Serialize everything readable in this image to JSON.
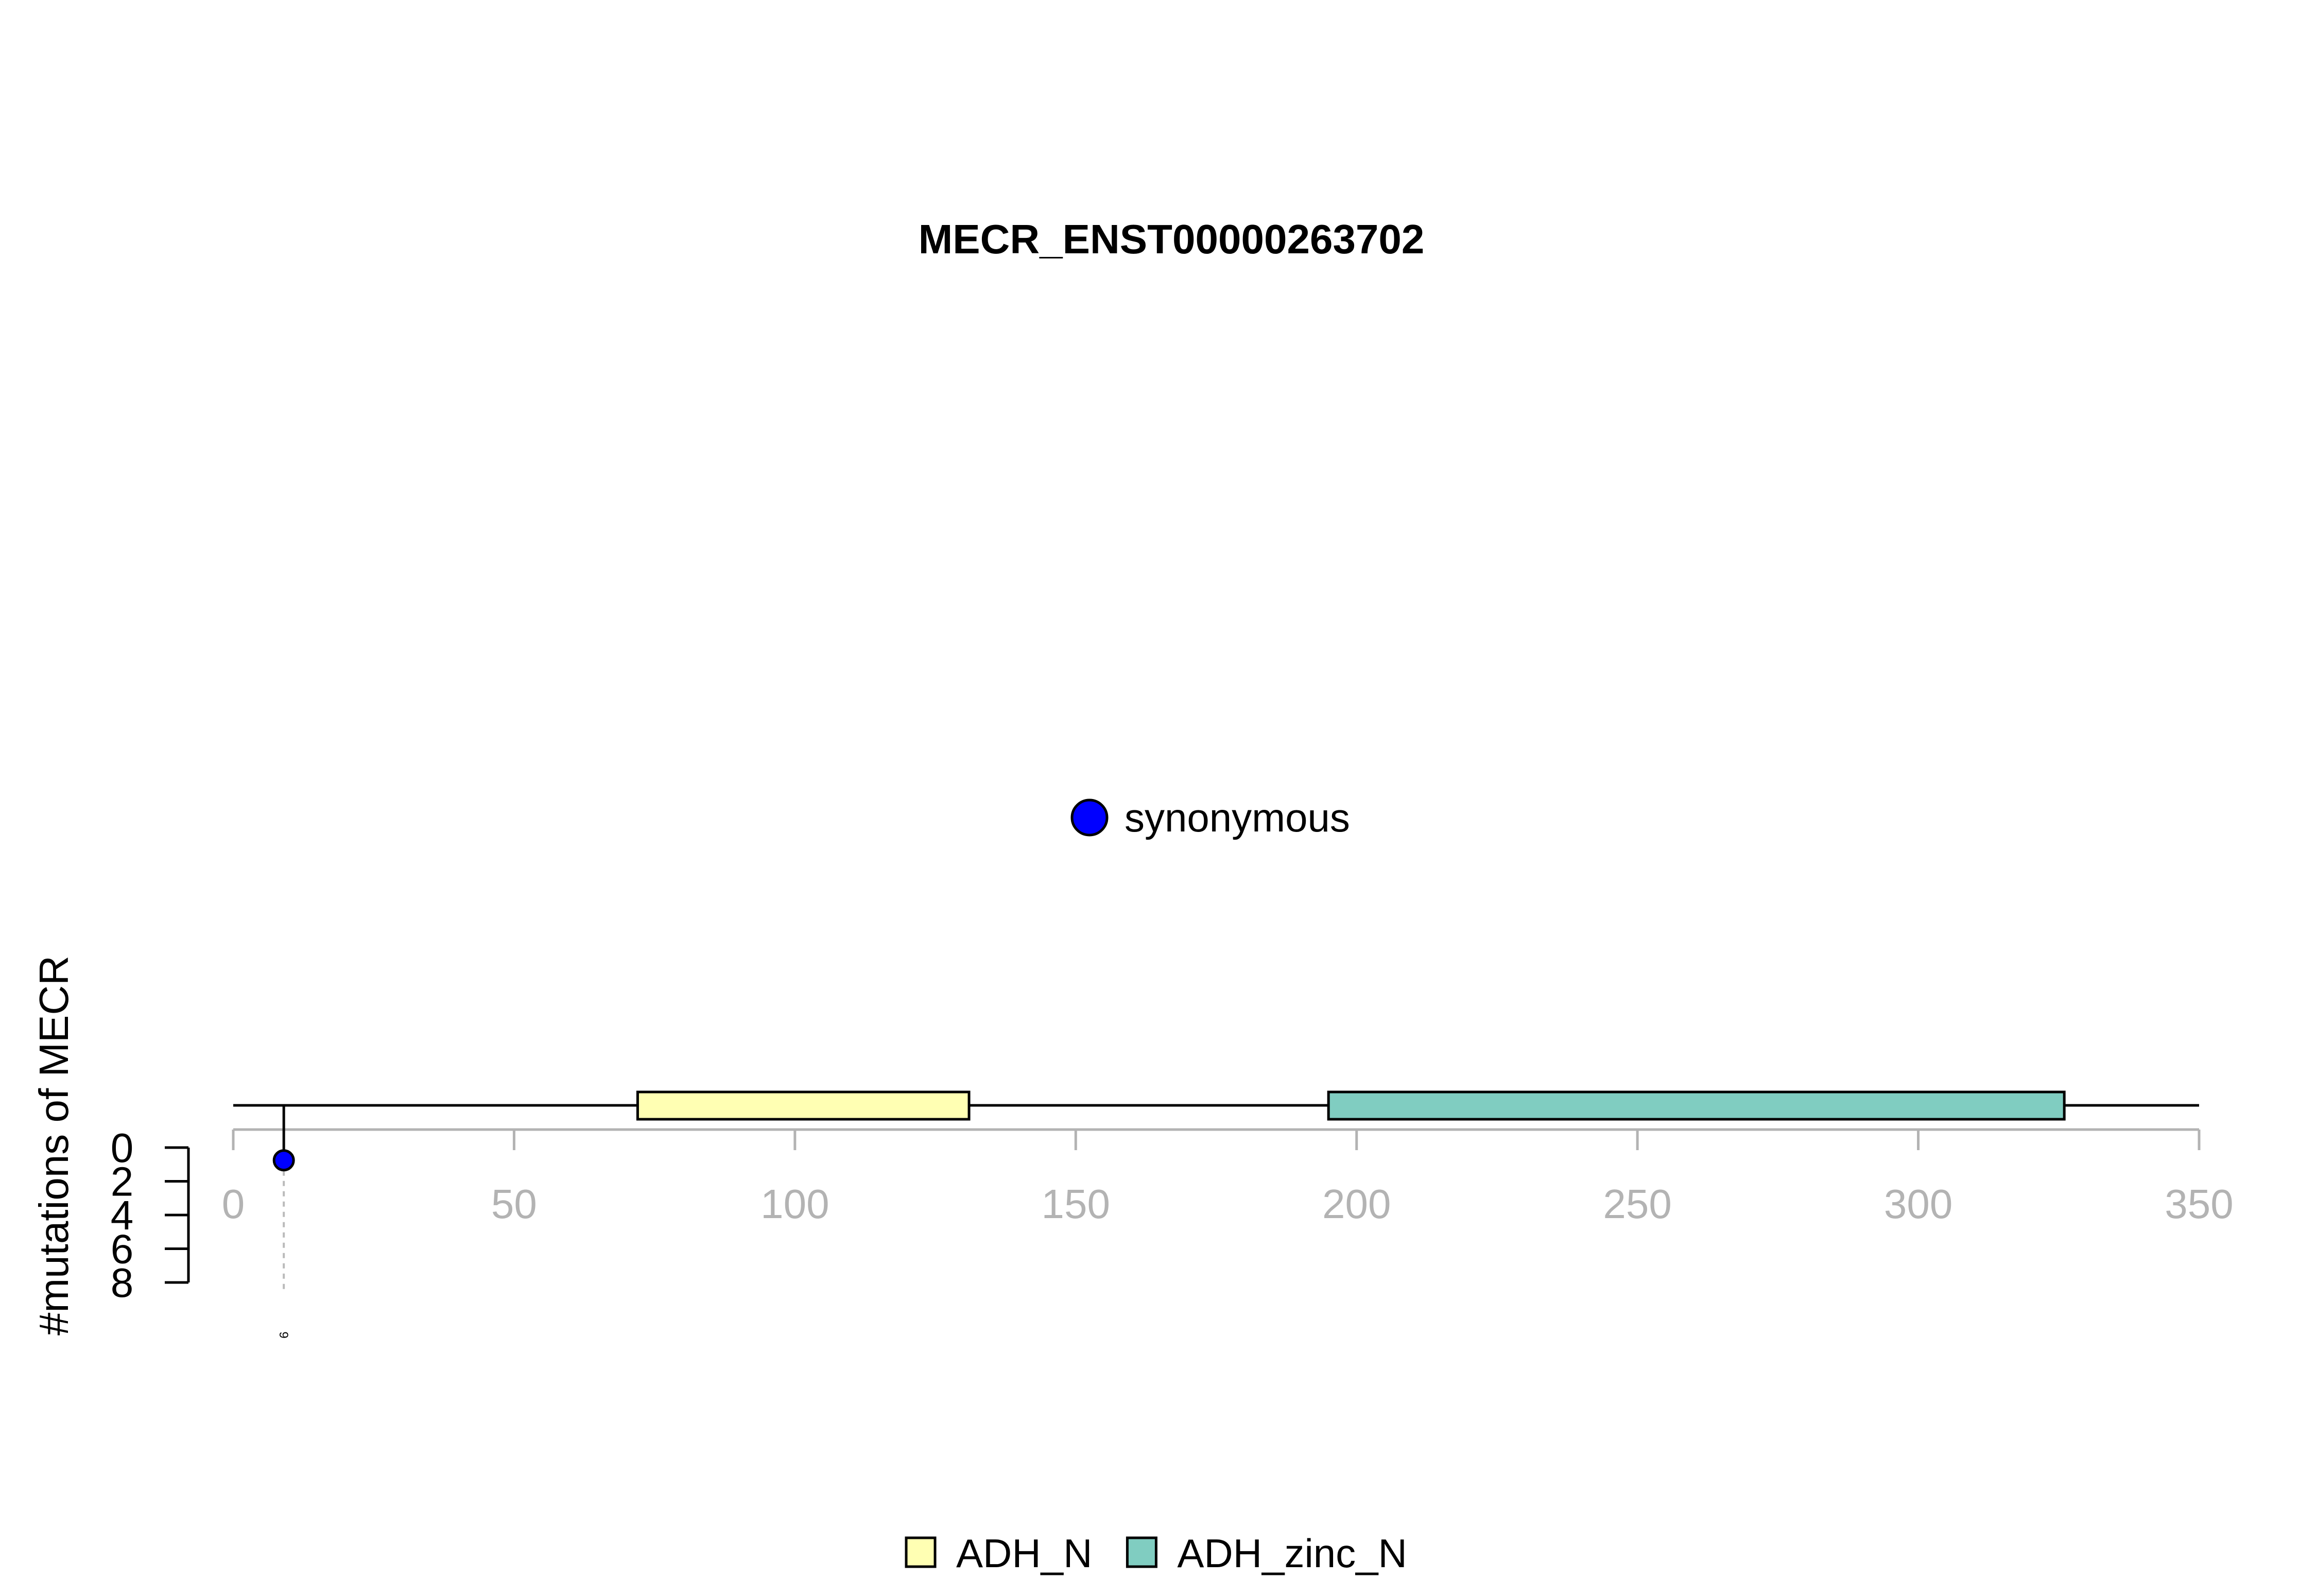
{
  "chart_data": {
    "type": "lollipop",
    "title": "MECR_ENST00000263702",
    "ylabel": "#mutations of MECR",
    "xlim": [
      0,
      350
    ],
    "xticks": [
      0,
      50,
      100,
      150,
      200,
      250,
      300,
      350
    ],
    "ylim": [
      0,
      8
    ],
    "yticks": [
      0,
      2,
      4,
      6,
      8
    ],
    "protein_length": 350,
    "domains": [
      {
        "name": "ADH_N",
        "start": 72,
        "end": 131,
        "color": "#FFFFB3"
      },
      {
        "name": "ADH_zinc_N",
        "start": 195,
        "end": 326,
        "color": "#80CDC1"
      }
    ],
    "mutations": [
      {
        "position": 9,
        "count": 1,
        "type": "synonymous",
        "label": "9"
      }
    ],
    "mutation_legend": [
      {
        "label": "synonymous",
        "color": "#0000FF"
      }
    ],
    "domain_legend": [
      {
        "label": "ADH_N",
        "color": "#FFFFB3"
      },
      {
        "label": "ADH_zinc_N",
        "color": "#80CDC1"
      }
    ]
  }
}
